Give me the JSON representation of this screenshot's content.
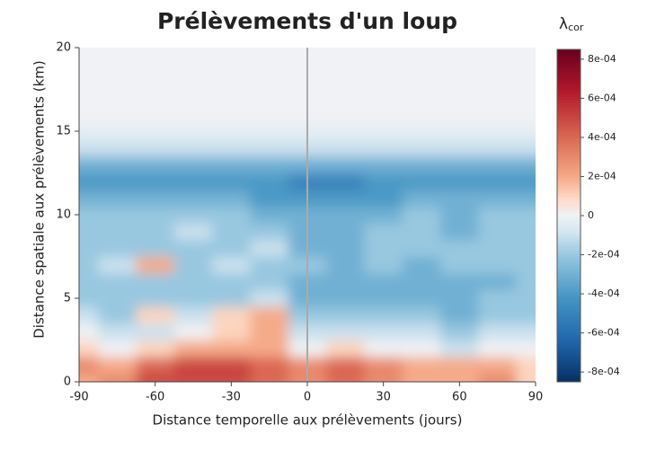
{
  "chart_data": {
    "type": "heatmap",
    "title": "Prélèvements d'un loup",
    "x_label": "Distance temporelle aux prélèvements (jours)",
    "y_label": "Distance spatiale aux prélèvements (km)",
    "colorbar_label": "λ",
    "colorbar_label_sub": "cor",
    "x": [
      -90,
      -75,
      -60,
      -45,
      -30,
      -15,
      0,
      15,
      30,
      45,
      60,
      75,
      90
    ],
    "y": [
      0,
      1,
      2,
      3,
      4,
      5,
      6,
      7,
      8,
      9,
      10,
      11,
      12,
      13,
      14,
      15,
      16,
      17,
      18,
      19,
      20
    ],
    "z": [
      [
        0.0002,
        0.0003,
        0.0005,
        0.0005,
        0.0005,
        0.0004,
        0.0003,
        0.0004,
        0.0003,
        0.0002,
        0.0002,
        0.0003,
        0.0001
      ],
      [
        0.0003,
        0.0002,
        0.0004,
        0.0005,
        0.0005,
        0.0004,
        0.0003,
        0.0004,
        0.0003,
        0.0002,
        0.0002,
        0.0002,
        0.0001
      ],
      [
        0.0001,
        0,
        0.0001,
        0.0002,
        0.0002,
        0.0002,
        0,
        0.0001,
        0,
        0,
        -0.0001,
        0,
        0
      ],
      [
        0,
        -0.0001,
        -0.0001,
        0,
        0.0001,
        0.0002,
        -0.0001,
        -0.0001,
        -0.0001,
        -0.0001,
        -0.0002,
        -0.0001,
        -0.0001
      ],
      [
        -0.0001,
        -0.0002,
        0.0001,
        -0.0001,
        0.0001,
        0.0002,
        -0.0002,
        -0.0002,
        -0.0002,
        -0.0002,
        -0.0003,
        -0.0002,
        -0.0002
      ],
      [
        -0.0002,
        -0.0002,
        -0.0002,
        -0.0002,
        -0.0002,
        -0.0001,
        -0.0003,
        -0.0003,
        -0.0003,
        -0.0003,
        -0.0003,
        -0.0002,
        -0.0002
      ],
      [
        -0.0002,
        -0.0002,
        -0.0002,
        -0.0002,
        -0.0002,
        -0.0002,
        -0.0003,
        -0.0003,
        -0.0003,
        -0.0003,
        -0.0003,
        -0.0003,
        -0.0002
      ],
      [
        -0.0002,
        -0.0001,
        0.0002,
        -0.0002,
        -0.0001,
        -0.0002,
        -0.0002,
        -0.0003,
        -0.0002,
        -0.0003,
        -0.0002,
        -0.0002,
        -0.0002
      ],
      [
        -0.0002,
        -0.0002,
        -0.0002,
        -0.0002,
        -0.0002,
        -0.0001,
        -0.0003,
        -0.0003,
        -0.0002,
        -0.0002,
        -0.0002,
        -0.0002,
        -0.0002
      ],
      [
        -0.0002,
        -0.0002,
        -0.0002,
        -0.0001,
        -0.0002,
        -0.0002,
        -0.0003,
        -0.0003,
        -0.0002,
        -0.0002,
        -0.0003,
        -0.0002,
        -0.0002
      ],
      [
        -0.0002,
        -0.0002,
        -0.0002,
        -0.0002,
        -0.0002,
        -0.0003,
        -0.0003,
        -0.0003,
        -0.0003,
        -0.0002,
        -0.0003,
        -0.0002,
        -0.0002
      ],
      [
        -0.0003,
        -0.0003,
        -0.0003,
        -0.0003,
        -0.0003,
        -0.0004,
        -0.0004,
        -0.0004,
        -0.0004,
        -0.0003,
        -0.0003,
        -0.0003,
        -0.0003
      ],
      [
        -0.0004,
        -0.0004,
        -0.0004,
        -0.0004,
        -0.0004,
        -0.0004,
        -0.0005,
        -0.0005,
        -0.0004,
        -0.0004,
        -0.0004,
        -0.0004,
        -0.0004
      ],
      [
        -0.0003,
        -0.0003,
        -0.0003,
        -0.0003,
        -0.0003,
        -0.0003,
        -0.0003,
        -0.0003,
        -0.0003,
        -0.0003,
        -0.0003,
        -0.0003,
        -0.0003
      ],
      [
        -0.0001,
        -0.0001,
        -0.0001,
        -0.0001,
        -0.0001,
        -0.0001,
        -0.0001,
        -0.0001,
        -0.0001,
        -0.0001,
        -0.0001,
        -0.0001,
        -0.0001
      ],
      [
        -3e-05,
        -3e-05,
        -3e-05,
        -3e-05,
        -3e-05,
        -3e-05,
        -3e-05,
        -3e-05,
        -3e-05,
        -3e-05,
        -3e-05,
        -3e-05,
        -3e-05
      ],
      [
        0,
        0,
        0,
        0,
        0,
        0,
        0,
        0,
        0,
        0,
        0,
        0,
        0
      ],
      [
        0,
        0,
        0,
        0,
        0,
        0,
        0,
        0,
        0,
        0,
        0,
        0,
        0
      ],
      [
        0,
        0,
        0,
        0,
        0,
        0,
        0,
        0,
        0,
        0,
        0,
        0,
        0
      ],
      [
        0,
        0,
        0,
        0,
        0,
        0,
        0,
        0,
        0,
        0,
        0,
        0,
        0
      ],
      [
        0,
        0,
        0,
        0,
        0,
        0,
        0,
        0,
        0,
        0,
        0,
        0,
        0
      ]
    ],
    "xlim": [
      -90,
      90
    ],
    "ylim": [
      0,
      20
    ],
    "xticks": [
      -90,
      -60,
      -30,
      0,
      30,
      60,
      90
    ],
    "yticks": [
      0,
      5,
      10,
      15,
      20
    ],
    "vline": 0,
    "zlim": [
      -0.00085,
      0.00085
    ],
    "zticks": [
      {
        "value": -0.0008,
        "label": "-8e-04"
      },
      {
        "value": -0.0006,
        "label": "-6e-04"
      },
      {
        "value": -0.0004,
        "label": "-4e-04"
      },
      {
        "value": -0.0002,
        "label": "-2e-04"
      },
      0,
      {
        "value": 0.0002,
        "label": "2e-04"
      },
      {
        "value": 0.0004,
        "label": "4e-04"
      },
      {
        "value": 0.0006,
        "label": "6e-04"
      },
      {
        "value": 0.0008,
        "label": "8e-04"
      }
    ]
  }
}
